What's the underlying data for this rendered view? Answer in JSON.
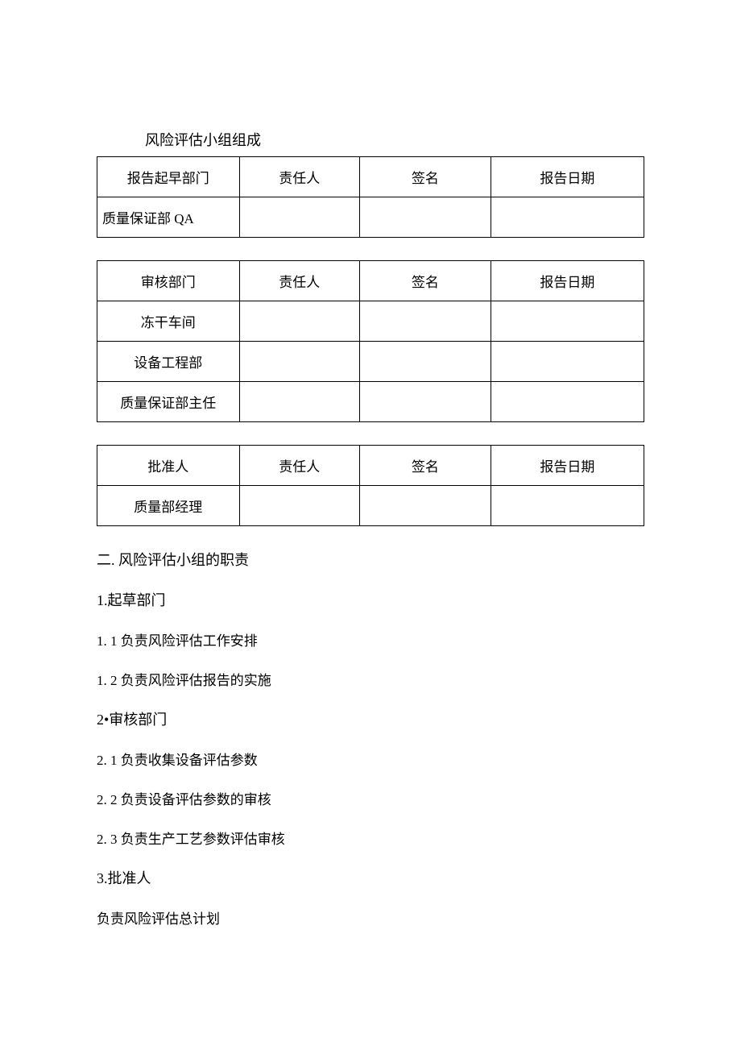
{
  "section_title": "风险评估小组组成",
  "table1": {
    "headers": [
      "报告起早部门",
      "责任人",
      "签名",
      "报告日期"
    ],
    "rows": [
      [
        "质量保证部 QA",
        "",
        "",
        ""
      ]
    ]
  },
  "table2": {
    "headers": [
      "审核部门",
      "责任人",
      "签名",
      "报告日期"
    ],
    "rows": [
      [
        "冻干车间",
        "",
        "",
        ""
      ],
      [
        "设备工程部",
        "",
        "",
        ""
      ],
      [
        "质量保证部主任",
        "",
        "",
        ""
      ]
    ]
  },
  "table3": {
    "headers": [
      "批准人",
      "责任人",
      "签名",
      "报告日期"
    ],
    "rows": [
      [
        "质量部经理",
        "",
        "",
        ""
      ]
    ]
  },
  "heading2": "二. 风险评估小组的职责",
  "sub1": "1.起草部门",
  "item1_1": "1. 1 负责风险评估工作安排",
  "item1_2": "1. 2 负责风险评估报告的实施",
  "sub2": "2•审核部门",
  "item2_1": "2. 1 负责收集设备评估参数",
  "item2_2": "2. 2 负责设备评估参数的审核",
  "item2_3": "2. 3 负责生产工艺参数评估审核",
  "sub3": "3.批准人",
  "item3_1": "负责风险评估总计划",
  "colors": {
    "text": "#000000",
    "background": "#ffffff",
    "border": "#000000"
  },
  "fontsize": {
    "title": 18,
    "body": 17
  }
}
